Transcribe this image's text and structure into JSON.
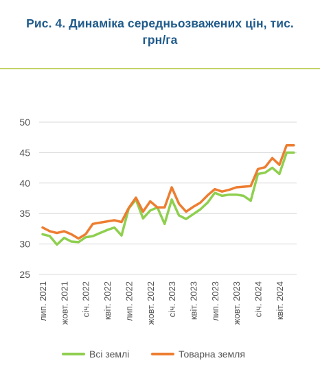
{
  "title": {
    "line1": "Рис. 4. Динаміка середньозважених цін, тис.",
    "line2": "грн/га"
  },
  "colors": {
    "title": "#1f5a8a",
    "divider": "#c5d36a",
    "all_lands": "#8fcf4f",
    "commodity_land": "#ed7d31",
    "grid": "#d9d9d9"
  },
  "chart_data": {
    "type": "line",
    "title": "Рис. 4. Динаміка середньозважених цін, тис. грн/га",
    "xlabel": "",
    "ylabel": "",
    "ylim": [
      25,
      50
    ],
    "yticks": [
      25,
      30,
      35,
      40,
      45,
      50
    ],
    "grid": true,
    "legend_position": "bottom",
    "x": [
      "лип. 2021",
      "сер. 2021",
      "вер. 2021",
      "жовт. 2021",
      "лист. 2021",
      "груд. 2021",
      "січ. 2022",
      "лют. 2022",
      "бер. 2022",
      "квіт. 2022",
      "трав. 2022",
      "черв. 2022",
      "лип. 2022",
      "сер. 2022",
      "вер. 2022",
      "жовт. 2022",
      "лист. 2022",
      "груд. 2022",
      "січ. 2023",
      "лют. 2023",
      "бер. 2023",
      "квіт. 2023",
      "трав. 2023",
      "черв. 2023",
      "лип. 2023",
      "сер. 2023",
      "вер. 2023",
      "жовт. 2023",
      "лист. 2023",
      "груд. 2023",
      "січ. 2024",
      "лют. 2024",
      "бер. 2024",
      "квіт. 2024",
      "трав. 2024",
      "черв. 2024"
    ],
    "xtick_labels": [
      "лип. 2021",
      "жовт. 2021",
      "січ. 2022",
      "квіт. 2022",
      "лип. 2022",
      "жовт. 2022",
      "січ. 2023",
      "квіт. 2023",
      "лип. 2023",
      "жовт. 2023",
      "січ. 2024",
      "квіт. 2024"
    ],
    "series": [
      {
        "name": "Всі землі",
        "values": [
          31.6,
          31.3,
          29.9,
          31.0,
          30.4,
          30.3,
          31.1,
          31.3,
          31.8,
          32.3,
          32.7,
          31.4,
          35.8,
          37.3,
          34.2,
          35.5,
          36.0,
          33.3,
          37.3,
          34.7,
          34.1,
          34.9,
          35.7,
          36.8,
          38.4,
          37.9,
          38.1,
          38.1,
          37.9,
          37.1,
          41.5,
          41.7,
          42.5,
          41.5,
          45.0,
          45.0
        ]
      },
      {
        "name": "Товарна земля",
        "values": [
          32.7,
          32.1,
          31.8,
          32.1,
          31.6,
          30.9,
          31.6,
          33.3,
          33.5,
          33.7,
          33.9,
          33.6,
          35.9,
          37.6,
          35.3,
          37.0,
          36.0,
          36.0,
          39.3,
          36.6,
          35.3,
          36.1,
          36.8,
          38.0,
          39.0,
          38.6,
          38.9,
          39.3,
          39.4,
          39.5,
          42.3,
          42.6,
          44.1,
          43.0,
          46.2,
          46.2
        ]
      }
    ]
  },
  "legend": {
    "items": [
      {
        "label": "Всі землі",
        "color": "#8fcf4f"
      },
      {
        "label": "Товарна земля",
        "color": "#ed7d31"
      }
    ]
  }
}
